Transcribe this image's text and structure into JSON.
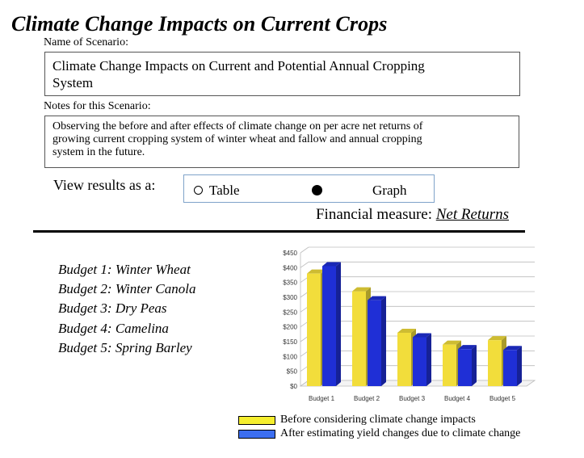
{
  "title": "Climate Change Impacts on Current Crops",
  "scenario": {
    "name_label": "Name of Scenario:",
    "name_line1": "Climate Change Impacts on Current and Potential Annual Cropping",
    "name_line2": "System",
    "notes_label": "Notes for this Scenario:",
    "notes_line1": "Observing the before and after effects of climate change on per acre net returns of",
    "notes_line2": "growing current cropping system of winter wheat and fallow and annual cropping",
    "notes_line3": "system in the future."
  },
  "view": {
    "label": "View results as a:",
    "options": [
      "Table",
      "Graph"
    ],
    "selected": "Graph"
  },
  "financial_measure": {
    "label": "Financial measure:",
    "value": "Net Returns"
  },
  "budgets": [
    "Budget 1: Winter Wheat",
    "Budget 2: Winter Canola",
    "Budget 3: Dry Peas",
    "Budget 4: Camelina",
    "Budget 5: Spring Barley"
  ],
  "colors": {
    "before": "#f2dd3b",
    "after": "#1f2fd6",
    "legend_before": "#f5ee2e",
    "legend_after": "#3c6ef0"
  },
  "chart_data": {
    "type": "bar",
    "categories": [
      "Budget 1",
      "Budget 2",
      "Budget 3",
      "Budget 4",
      "Budget 5"
    ],
    "series": [
      {
        "name": "Before considering climate change impacts",
        "values": [
          380,
          320,
          180,
          140,
          155
        ]
      },
      {
        "name": "After estimating yield changes due to climate change",
        "values": [
          405,
          290,
          165,
          125,
          122
        ]
      }
    ],
    "ylim": [
      0,
      450
    ],
    "yticks": [
      "$0",
      "$50",
      "$100",
      "$150",
      "$200",
      "$250",
      "$300",
      "$350",
      "$400",
      "$450"
    ],
    "grid": true,
    "legend": "bottom"
  }
}
